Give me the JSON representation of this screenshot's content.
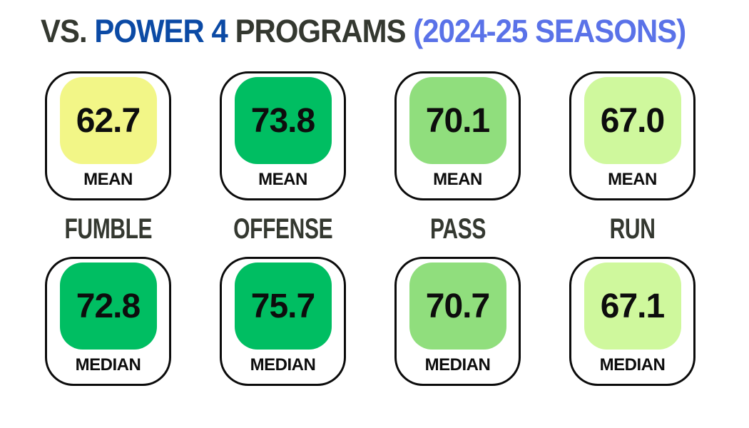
{
  "title": {
    "prefix": "VS. ",
    "highlight": "POWER 4 ",
    "middle": "PROGRAMS ",
    "suffix": "(2024-25 SEASONS)"
  },
  "categories": [
    "FUMBLE",
    "OFFENSE",
    "PASS",
    "RUN"
  ],
  "cards": [
    {
      "value": "62.7",
      "label": "MEAN",
      "color": "#F2F687"
    },
    {
      "value": "73.8",
      "label": "MEAN",
      "color": "#00BE62"
    },
    {
      "value": "70.1",
      "label": "MEAN",
      "color": "#90DE7D"
    },
    {
      "value": "67.0",
      "label": "MEAN",
      "color": "#CFF89D"
    },
    {
      "value": "72.8",
      "label": "MEDIAN",
      "color": "#00BE62"
    },
    {
      "value": "75.7",
      "label": "MEDIAN",
      "color": "#00BE62"
    },
    {
      "value": "70.7",
      "label": "MEDIAN",
      "color": "#90DE7D"
    },
    {
      "value": "67.1",
      "label": "MEDIAN",
      "color": "#CFF89D"
    }
  ],
  "colors": {
    "background": "#FFFFFF",
    "title_dark": "#343830",
    "title_blue": "#0B4AA5",
    "title_periwinkle": "#5A72E8",
    "card_border": "#0B0B0B",
    "value_text": "#0D0D0D",
    "tile_pale_yellow": "#F2F687",
    "tile_green": "#00BE62",
    "tile_medium_green": "#90DE7D",
    "tile_pale_green": "#CFF89D"
  },
  "chart_data": {
    "type": "table",
    "title": "VS. POWER 4 PROGRAMS (2024-25 SEASONS)",
    "categories": [
      "FUMBLE",
      "OFFENSE",
      "PASS",
      "RUN"
    ],
    "series": [
      {
        "name": "MEAN",
        "values": [
          62.7,
          73.8,
          70.1,
          67.0
        ]
      },
      {
        "name": "MEDIAN",
        "values": [
          72.8,
          75.7,
          70.7,
          67.1
        ]
      }
    ],
    "legend_position": "none",
    "grid": false,
    "value_color_note": "tile color encodes value: pale yellow = lowest, saturated green = highest"
  }
}
